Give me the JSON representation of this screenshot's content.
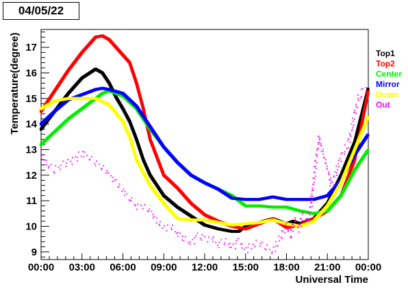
{
  "date_label": "04/05/22",
  "chart_data": {
    "type": "scatter",
    "title": "",
    "xlabel": "Universal Time",
    "ylabel": "Temperature(degree)",
    "xlim": [
      0,
      24
    ],
    "ylim": [
      8.7,
      17.7
    ],
    "x_tick_labels": [
      "00:00",
      "03:00",
      "06:00",
      "09:00",
      "12:00",
      "15:00",
      "18:00",
      "21:00",
      "00:00"
    ],
    "y_tick_labels": [
      "9",
      "10",
      "11",
      "12",
      "13",
      "14",
      "15",
      "16",
      "17"
    ],
    "legend_position": "right",
    "grid": false,
    "series": [
      {
        "name": "Top1",
        "color": "#000000",
        "x": [
          0,
          1,
          2,
          3,
          4,
          4.5,
          5,
          5.5,
          6,
          6.5,
          7,
          7.5,
          8,
          9,
          10,
          11,
          12,
          13,
          14,
          14.5,
          15,
          16,
          17,
          18,
          18.5,
          19,
          20,
          21,
          22,
          23,
          24
        ],
        "y": [
          13.8,
          14.5,
          15.2,
          15.8,
          16.15,
          16.0,
          15.6,
          15.05,
          14.6,
          14.1,
          13.4,
          12.6,
          12.0,
          11.2,
          10.75,
          10.4,
          10.05,
          9.9,
          9.8,
          9.8,
          10.0,
          10.15,
          10.3,
          10.1,
          10.2,
          10.1,
          10.3,
          10.9,
          12.0,
          13.3,
          15.4
        ]
      },
      {
        "name": "Top2",
        "color": "#ff0000",
        "x": [
          0,
          1,
          2,
          3,
          4,
          4.5,
          5,
          5.5,
          6,
          6.5,
          7,
          7.5,
          8,
          9,
          10,
          11,
          12,
          13,
          14,
          15,
          16,
          17,
          18,
          19,
          20,
          21,
          22,
          23,
          24
        ],
        "y": [
          14.5,
          15.3,
          16.1,
          16.8,
          17.4,
          17.45,
          17.3,
          17.0,
          16.7,
          16.4,
          15.6,
          14.6,
          13.4,
          12.0,
          11.5,
          10.9,
          10.45,
          10.2,
          10.0,
          9.9,
          10.1,
          10.3,
          9.95,
          10.05,
          10.3,
          10.6,
          11.2,
          12.6,
          15.3
        ]
      },
      {
        "name": "Center",
        "color": "#00ee00",
        "x": [
          0,
          1,
          2,
          3,
          4,
          4.5,
          5,
          6,
          7,
          8,
          9,
          10,
          11,
          12,
          13,
          14,
          15,
          16,
          17,
          18,
          19,
          20,
          21,
          22,
          23,
          24
        ],
        "y": [
          13.2,
          13.7,
          14.2,
          14.6,
          15.0,
          15.2,
          15.3,
          15.1,
          14.6,
          13.8,
          13.1,
          12.5,
          12.0,
          11.7,
          11.45,
          11.2,
          10.8,
          10.8,
          10.75,
          10.75,
          10.6,
          10.5,
          10.6,
          11.2,
          12.2,
          13.0
        ]
      },
      {
        "name": "Mirror",
        "color": "#0000ff",
        "x": [
          0,
          1,
          2,
          3,
          4,
          4.5,
          5,
          6,
          7,
          8,
          9,
          10,
          11,
          12,
          13,
          14,
          15,
          16,
          17,
          18,
          19,
          20,
          21,
          22,
          23,
          24
        ],
        "y": [
          14.0,
          14.5,
          14.95,
          15.15,
          15.35,
          15.4,
          15.35,
          15.2,
          14.7,
          13.9,
          13.1,
          12.5,
          12.0,
          11.7,
          11.45,
          11.1,
          11.05,
          11.05,
          11.15,
          11.05,
          11.05,
          11.05,
          11.2,
          11.8,
          12.8,
          13.6
        ]
      },
      {
        "name": "Dome",
        "color": "#ffff00",
        "x": [
          0,
          1,
          2,
          3,
          4,
          5,
          6,
          6.5,
          7,
          8,
          9,
          10,
          11,
          12,
          13,
          14,
          15,
          16,
          17,
          18,
          19,
          20,
          21,
          22,
          23,
          24
        ],
        "y": [
          14.6,
          14.9,
          15.0,
          15.0,
          15.0,
          14.75,
          14.1,
          13.5,
          12.6,
          11.6,
          10.9,
          10.3,
          10.25,
          10.25,
          10.15,
          10.05,
          10.1,
          10.15,
          10.25,
          10.1,
          10.0,
          10.2,
          10.8,
          11.7,
          13.0,
          14.3
        ]
      },
      {
        "name": "Out",
        "color": "#ff00ff",
        "x": [
          0,
          0.5,
          1,
          1.5,
          2,
          2.5,
          3,
          3.5,
          4,
          4.5,
          5,
          5.5,
          6,
          6.5,
          7,
          7.5,
          8,
          8.5,
          9,
          9.5,
          10,
          10.5,
          11,
          11.5,
          12,
          12.5,
          13,
          13.5,
          14,
          14.5,
          15,
          15.5,
          16,
          16.5,
          17,
          17.5,
          18,
          18.3,
          18.6,
          18.9,
          19.2,
          19.5,
          19.8,
          20.1,
          20.4,
          20.7,
          21,
          21.3,
          21.6,
          21.9,
          22.2,
          22.5,
          22.8,
          23,
          23.3,
          23.6,
          24
        ],
        "y": [
          12.8,
          12.4,
          12.2,
          12.4,
          12.5,
          12.6,
          12.9,
          12.7,
          12.5,
          12.3,
          12.0,
          11.7,
          11.4,
          11.1,
          10.8,
          10.75,
          10.6,
          10.2,
          9.95,
          10.0,
          9.75,
          9.5,
          9.35,
          9.6,
          9.5,
          9.55,
          9.3,
          9.45,
          9.15,
          9.4,
          9.05,
          9.3,
          9.35,
          9.2,
          9.0,
          9.5,
          10.0,
          9.6,
          10.3,
          9.9,
          10.5,
          10.2,
          10.8,
          12.3,
          13.5,
          12.8,
          12.3,
          11.6,
          12.0,
          12.6,
          12.9,
          13.2,
          13.8,
          14.4,
          15.0,
          15.3,
          15.4
        ]
      }
    ]
  }
}
